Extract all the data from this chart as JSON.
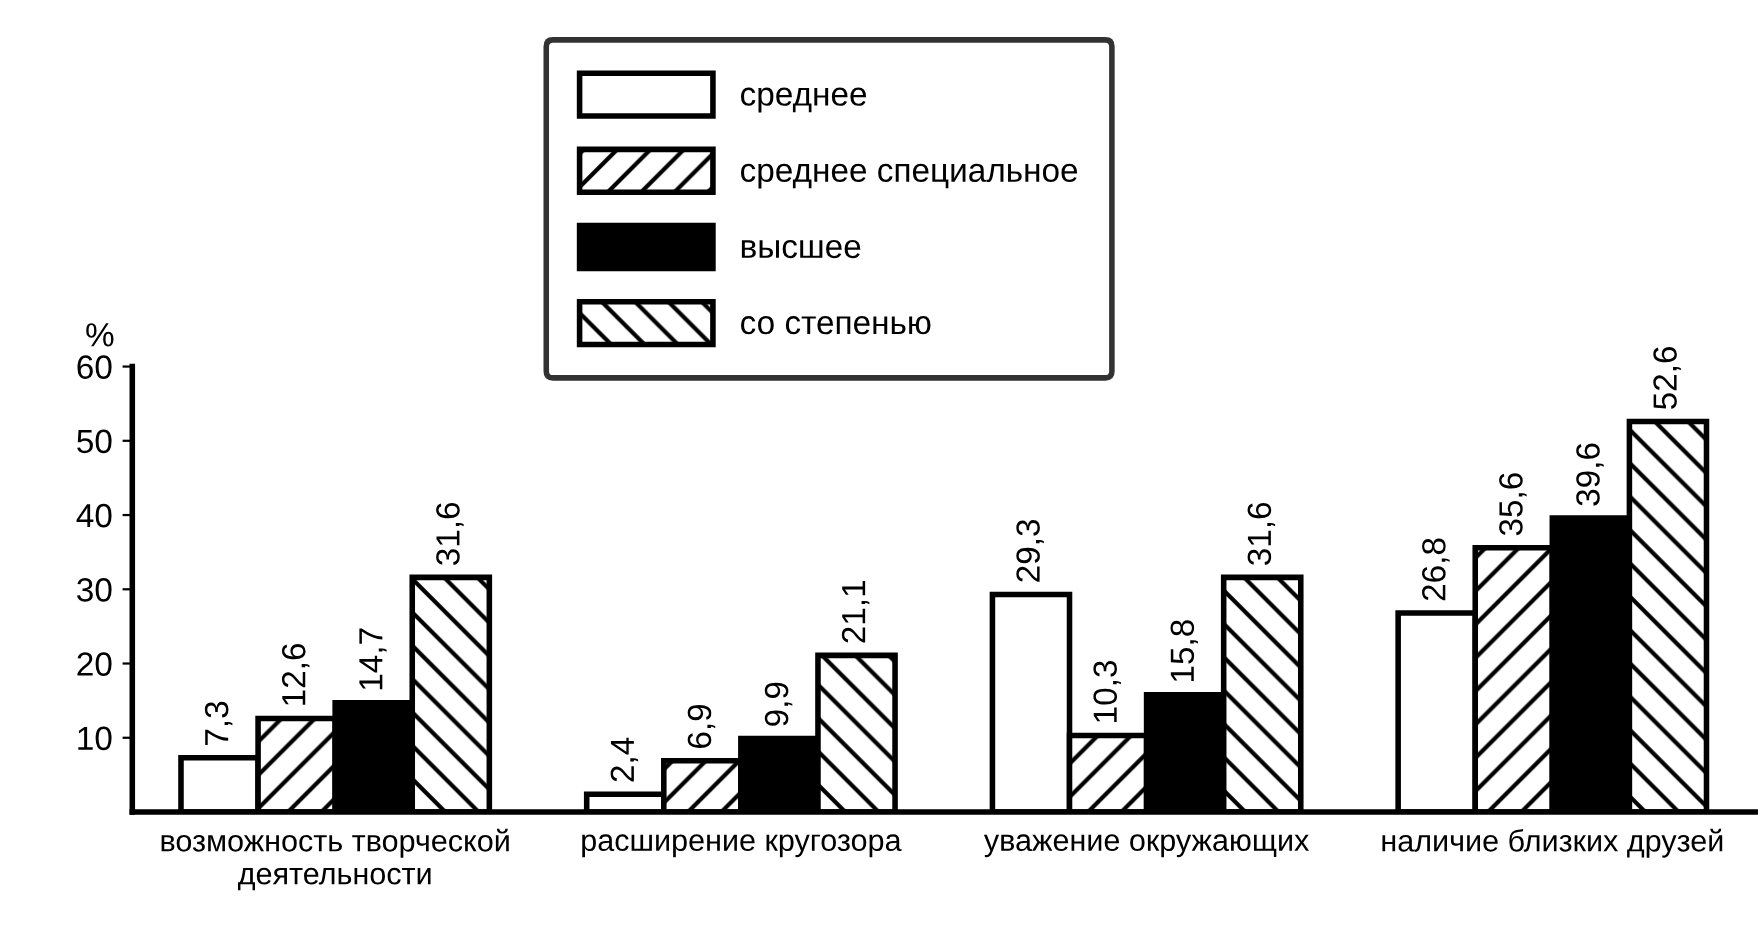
{
  "chart_data": {
    "type": "bar",
    "ylabel": "%",
    "categories": [
      "возможность творческой\nдеятельности",
      "расширение кругозора",
      "уважение окружающих",
      "наличие близких друзей"
    ],
    "series": [
      {
        "name": "среднее",
        "color": "#ffffff",
        "values": [
          7.3,
          2.4,
          29.3,
          26.8
        ],
        "value_labels": [
          "7,3",
          "2,4",
          "29,3",
          "26,8"
        ]
      },
      {
        "name": "среднее специальное",
        "color": "#ffffff",
        "values": [
          12.6,
          6.9,
          10.3,
          35.6
        ],
        "value_labels": [
          "12,6",
          "6,9",
          "10,3",
          "35,6"
        ]
      },
      {
        "name": "высшее",
        "color": "#000000",
        "values": [
          14.7,
          9.9,
          15.8,
          39.6
        ],
        "value_labels": [
          "14,7",
          "9,9",
          "15,8",
          "39,6"
        ]
      },
      {
        "name": "со степенью",
        "color": "#ffffff",
        "values": [
          31.6,
          21.1,
          31.6,
          52.6
        ],
        "value_labels": [
          "31,6",
          "21,1",
          "31,6",
          "52,6"
        ]
      }
    ],
    "ylim": [
      0,
      60
    ],
    "yticks": [
      10,
      20,
      30,
      40,
      50,
      60
    ],
    "grid": false,
    "legend": "top"
  }
}
